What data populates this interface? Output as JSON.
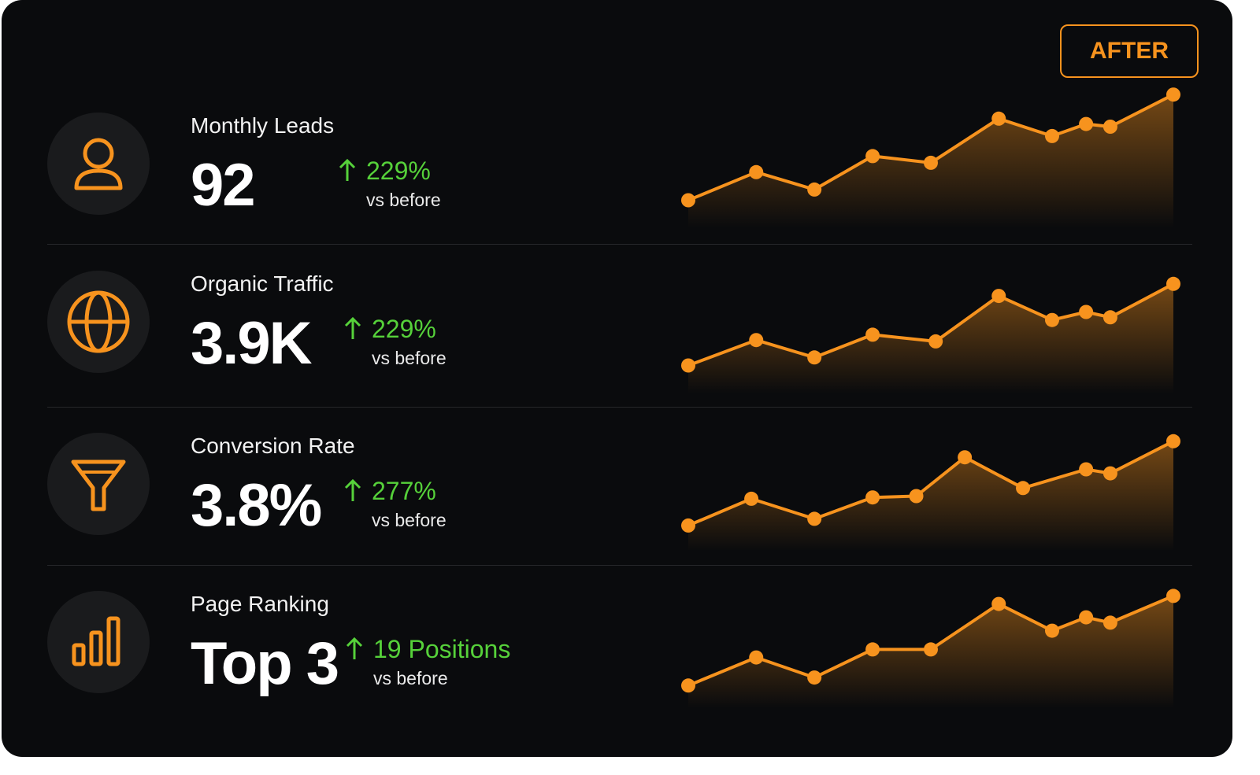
{
  "badge": "AFTER",
  "metrics": [
    {
      "title": "Monthly Leads",
      "value": "92",
      "change": "229%",
      "note": "vs before",
      "chart": {
        "type": "line",
        "x": [
          0,
          14,
          26,
          38,
          50,
          64,
          75,
          82,
          87,
          100
        ],
        "values": [
          15,
          36,
          23,
          48,
          43,
          76,
          63,
          72,
          70,
          94
        ],
        "xlim": [
          0,
          100
        ],
        "ylim": [
          0,
          100
        ],
        "color": "#f7931e"
      }
    },
    {
      "title": "Organic Traffic",
      "value": "3.9K",
      "change": "229%",
      "note": "vs before",
      "chart": {
        "type": "line",
        "x": [
          0,
          14,
          26,
          38,
          51,
          64,
          75,
          82,
          87,
          100
        ],
        "values": [
          15,
          34,
          21,
          38,
          33,
          67,
          49,
          55,
          51,
          76
        ],
        "xlim": [
          0,
          100
        ],
        "ylim": [
          0,
          100
        ],
        "color": "#f7931e"
      }
    },
    {
      "title": "Conversion Rate",
      "value": "3.8%",
      "change": "277%",
      "note": "vs before",
      "chart": {
        "type": "line",
        "x": [
          0,
          13,
          26,
          38,
          47,
          57,
          69,
          82,
          87,
          100
        ],
        "values": [
          13,
          33,
          18,
          34,
          35,
          64,
          41,
          55,
          52,
          76
        ],
        "xlim": [
          0,
          100
        ],
        "ylim": [
          0,
          100
        ],
        "color": "#f7931e"
      }
    },
    {
      "title": "Page Ranking",
      "value": "Top 3",
      "change": "19 Positions",
      "note": "vs before",
      "chart": {
        "type": "line",
        "x": [
          0,
          14,
          26,
          38,
          50,
          64,
          75,
          82,
          87,
          100
        ],
        "values": [
          11,
          32,
          17,
          38,
          38,
          72,
          52,
          62,
          58,
          78
        ],
        "xlim": [
          0,
          100
        ],
        "ylim": [
          0,
          100
        ],
        "color": "#f7931e"
      }
    }
  ]
}
